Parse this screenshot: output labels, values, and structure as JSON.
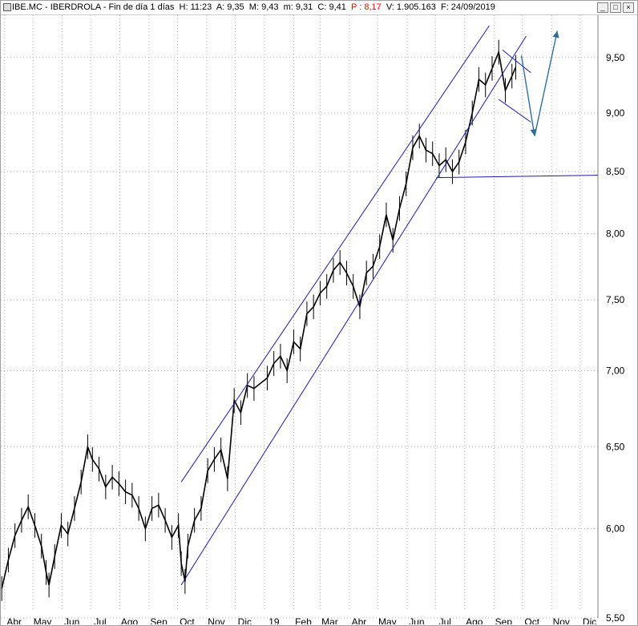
{
  "window": {
    "ticker": "IBE.MC",
    "name": "IBERDROLA",
    "timeframe": "Fin de día 1 días",
    "stats": {
      "H": "H: 11:23",
      "A": "A: 9,35",
      "M": "M: 9,43",
      "m": "m: 9,31",
      "C": "C: 9,41",
      "P": "P : 8,17",
      "V": "V: 1.905.163",
      "F": "F: 24/09/2019"
    },
    "buttons": {
      "minimize": "_",
      "restore": "□",
      "close": "×"
    }
  },
  "colors": {
    "price": "#000000",
    "channel": "#1a1ab0",
    "projection": "#2f6f9f",
    "grid": "#b0b0b0",
    "stats_highlight": "#ff0000"
  },
  "chart_data": {
    "type": "line",
    "x_ticks": [
      "Abr",
      "May",
      "Jun",
      "Jul",
      "Ago",
      "Sep",
      "Oct",
      "Nov",
      "Dic",
      "19",
      "Feb",
      "Mar",
      "Abr",
      "May",
      "Jun",
      "Jul",
      "Ago",
      "Sep",
      "Oct",
      "Nov",
      "Dic"
    ],
    "y_ticks": [
      "5,50",
      "6,00",
      "6,50",
      "7,00",
      "7,50",
      "8,00",
      "8,50",
      "9,00",
      "9,50"
    ],
    "y_tick_values": [
      5.5,
      6.0,
      6.5,
      7.0,
      7.5,
      8.0,
      8.5,
      9.0,
      9.5
    ],
    "y_scale": "log",
    "ylim": [
      5.5,
      9.9
    ],
    "xlim": [
      "2018-03-28",
      "2019-12-20"
    ],
    "grid": true,
    "series": [
      {
        "dates": [
          "2018-03-29",
          "2018-04-05",
          "2018-04-12",
          "2018-04-19",
          "2018-04-26",
          "2018-05-03",
          "2018-05-10",
          "2018-05-15",
          "2018-05-18",
          "2018-05-24",
          "2018-05-31",
          "2018-06-07",
          "2018-06-14",
          "2018-06-21",
          "2018-06-28",
          "2018-07-03",
          "2018-07-10",
          "2018-07-17",
          "2018-07-24",
          "2018-07-31",
          "2018-08-07",
          "2018-08-14",
          "2018-08-21",
          "2018-08-28",
          "2018-09-04",
          "2018-09-11",
          "2018-09-18",
          "2018-09-25",
          "2018-10-02",
          "2018-10-05",
          "2018-10-09",
          "2018-10-12",
          "2018-10-19",
          "2018-10-26",
          "2018-11-02",
          "2018-11-09",
          "2018-11-16",
          "2018-11-23",
          "2018-11-30",
          "2018-12-07",
          "2018-12-14",
          "2018-12-21",
          "2019-01-04",
          "2019-01-11",
          "2019-01-18",
          "2019-01-25",
          "2019-02-01",
          "2019-02-08",
          "2019-02-15",
          "2019-02-22",
          "2019-03-01",
          "2019-03-08",
          "2019-03-15",
          "2019-03-22",
          "2019-03-29",
          "2019-04-05",
          "2019-04-12",
          "2019-04-19",
          "2019-04-26",
          "2019-05-03",
          "2019-05-10",
          "2019-05-17",
          "2019-05-24",
          "2019-05-31",
          "2019-06-07",
          "2019-06-14",
          "2019-06-21",
          "2019-06-28",
          "2019-07-05",
          "2019-07-12",
          "2019-07-19",
          "2019-07-26",
          "2019-08-02",
          "2019-08-09",
          "2019-08-16",
          "2019-08-23",
          "2019-08-30",
          "2019-09-06",
          "2019-09-13",
          "2019-09-20",
          "2019-09-24"
        ],
        "values": [
          5.66,
          5.82,
          5.96,
          6.05,
          6.13,
          6.02,
          5.9,
          5.75,
          5.68,
          5.84,
          6.02,
          5.97,
          6.12,
          6.28,
          6.5,
          6.42,
          6.36,
          6.25,
          6.31,
          6.27,
          6.22,
          6.2,
          6.12,
          6.0,
          6.12,
          6.14,
          6.05,
          5.95,
          6.02,
          5.8,
          5.7,
          5.9,
          6.05,
          6.12,
          6.35,
          6.42,
          6.48,
          6.3,
          6.8,
          6.72,
          6.9,
          6.88,
          6.95,
          7.05,
          7.1,
          7.0,
          7.2,
          7.15,
          7.4,
          7.45,
          7.55,
          7.6,
          7.72,
          7.78,
          7.7,
          7.6,
          7.45,
          7.7,
          7.75,
          7.9,
          8.15,
          7.95,
          8.2,
          8.4,
          8.7,
          8.8,
          8.68,
          8.65,
          8.55,
          8.6,
          8.5,
          8.58,
          8.75,
          9.0,
          9.3,
          9.25,
          9.4,
          9.55,
          9.2,
          9.33,
          9.41
        ]
      }
    ],
    "channel_lines": [
      {
        "from": [
          "2018-10-05",
          5.68
        ],
        "to": [
          "2019-10-05",
          9.7
        ]
      },
      {
        "from": [
          "2018-10-05",
          6.28
        ],
        "to": [
          "2019-08-27",
          9.8
        ]
      }
    ],
    "support_line": {
      "from": [
        "2019-07-02",
        8.45
      ],
      "to": [
        "2019-12-20",
        8.47
      ]
    },
    "flag_lines": [
      {
        "from": [
          "2019-09-10",
          9.57
        ],
        "to": [
          "2019-10-10",
          9.36
        ]
      },
      {
        "from": [
          "2019-09-06",
          9.12
        ],
        "to": [
          "2019-10-10",
          8.92
        ]
      }
    ],
    "projection_arrows": [
      {
        "from": [
          "2019-09-30",
          9.52
        ],
        "to": [
          "2019-10-14",
          8.8
        ]
      },
      {
        "from": [
          "2019-10-14",
          8.8
        ],
        "to": [
          "2019-11-07",
          9.75
        ]
      }
    ]
  }
}
